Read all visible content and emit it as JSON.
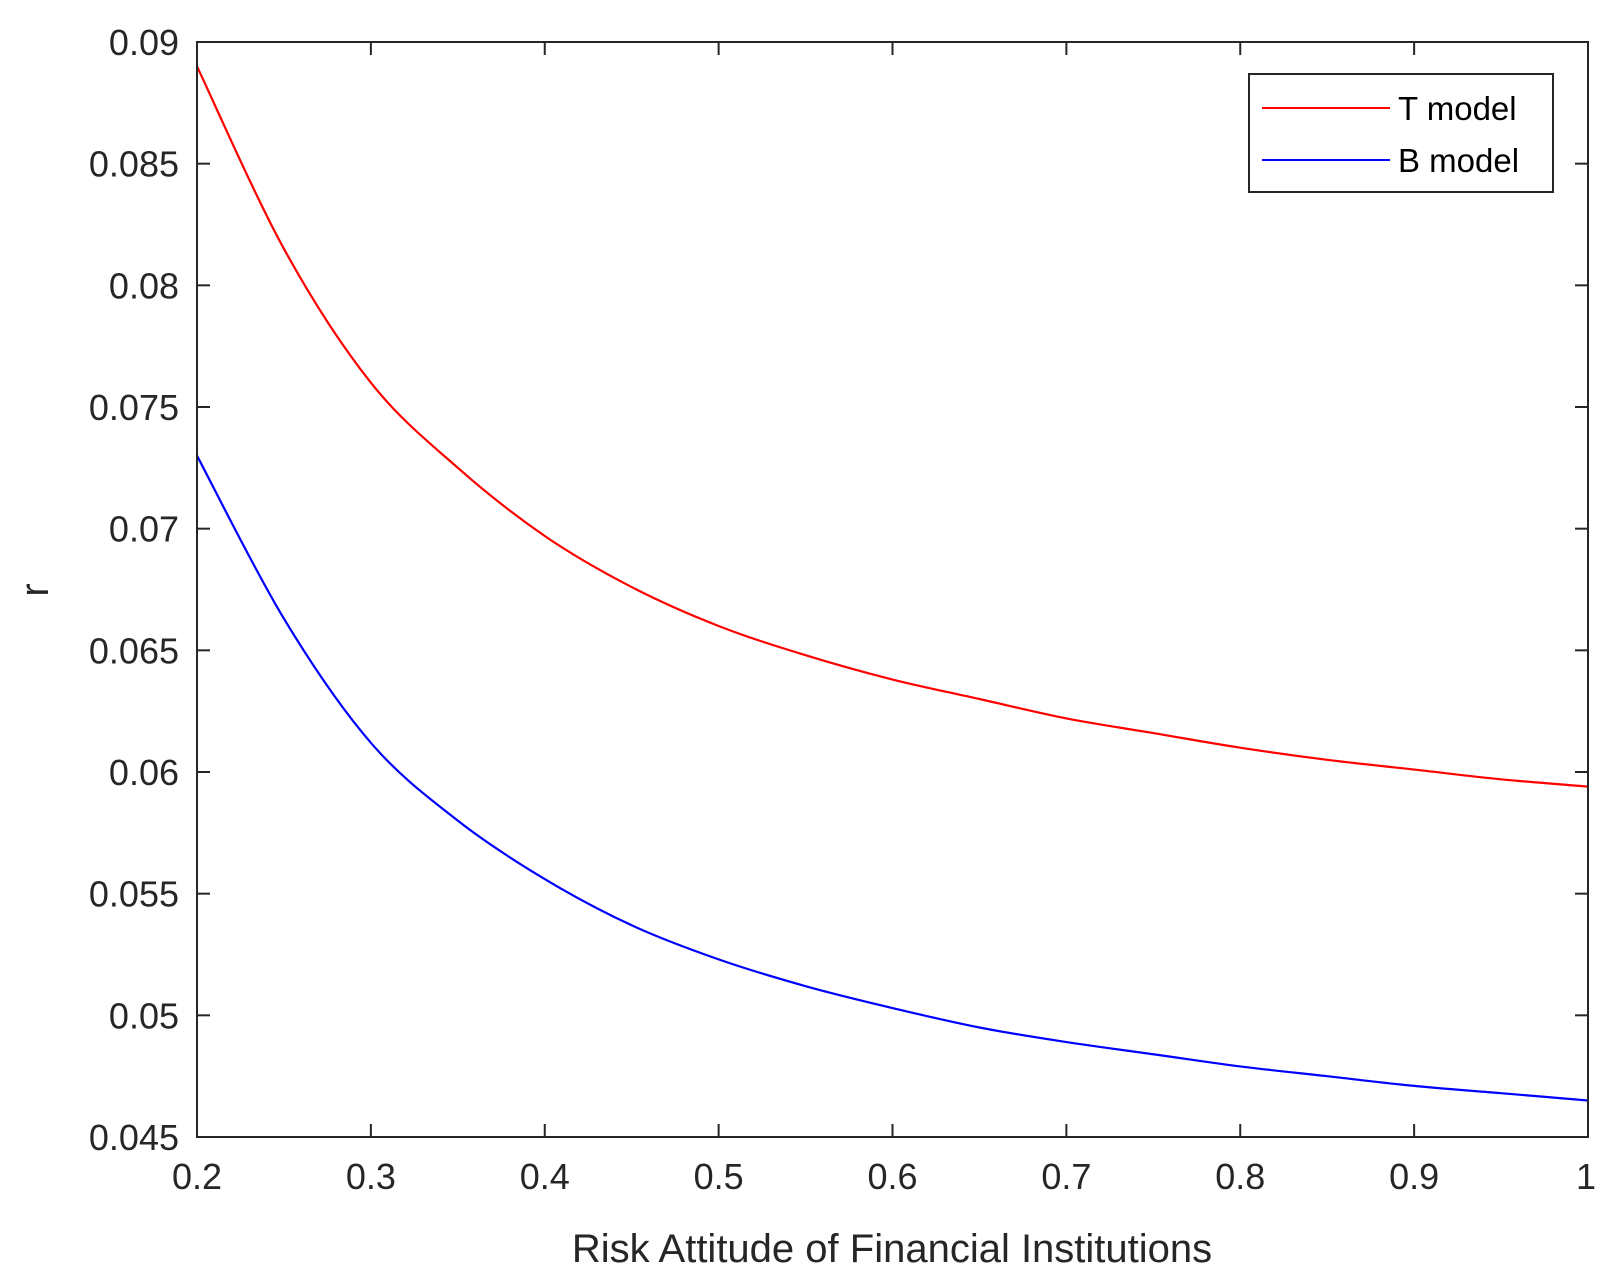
{
  "chart_data": {
    "type": "line",
    "xlabel": "Risk Attitude of Financial Institutions",
    "ylabel": "r",
    "xlim": [
      0.2,
      1.0
    ],
    "ylim": [
      0.045,
      0.09
    ],
    "xticks": [
      0.2,
      0.3,
      0.4,
      0.5,
      0.6,
      0.7,
      0.8,
      0.9,
      1.0
    ],
    "xtick_labels": [
      "0.2",
      "0.3",
      "0.4",
      "0.5",
      "0.6",
      "0.7",
      "0.8",
      "0.9",
      "1"
    ],
    "yticks": [
      0.045,
      0.05,
      0.055,
      0.06,
      0.065,
      0.07,
      0.075,
      0.08,
      0.085,
      0.09
    ],
    "ytick_labels": [
      "0.045",
      "0.05",
      "0.055",
      "0.06",
      "0.065",
      "0.07",
      "0.075",
      "0.08",
      "0.085",
      "0.09"
    ],
    "grid": false,
    "legend": "top-right",
    "series": [
      {
        "name": "T model",
        "color": "#ff0000",
        "x": [
          0.2,
          0.25,
          0.3,
          0.35,
          0.4,
          0.45,
          0.5,
          0.55,
          0.6,
          0.65,
          0.7,
          0.75,
          0.8,
          0.85,
          0.9,
          0.95,
          1.0
        ],
        "y": [
          0.089,
          0.0815,
          0.076,
          0.0725,
          0.0697,
          0.0676,
          0.066,
          0.0648,
          0.0638,
          0.063,
          0.0622,
          0.0616,
          0.061,
          0.0605,
          0.0601,
          0.0597,
          0.0594
        ]
      },
      {
        "name": "B model",
        "color": "#0000ff",
        "x": [
          0.2,
          0.25,
          0.3,
          0.35,
          0.4,
          0.45,
          0.5,
          0.55,
          0.6,
          0.65,
          0.7,
          0.75,
          0.8,
          0.85,
          0.9,
          0.95,
          1.0
        ],
        "y": [
          0.073,
          0.0663,
          0.0612,
          0.058,
          0.0556,
          0.0537,
          0.0523,
          0.0512,
          0.0503,
          0.0495,
          0.0489,
          0.0484,
          0.0479,
          0.0475,
          0.0471,
          0.0468,
          0.0465
        ]
      }
    ]
  }
}
